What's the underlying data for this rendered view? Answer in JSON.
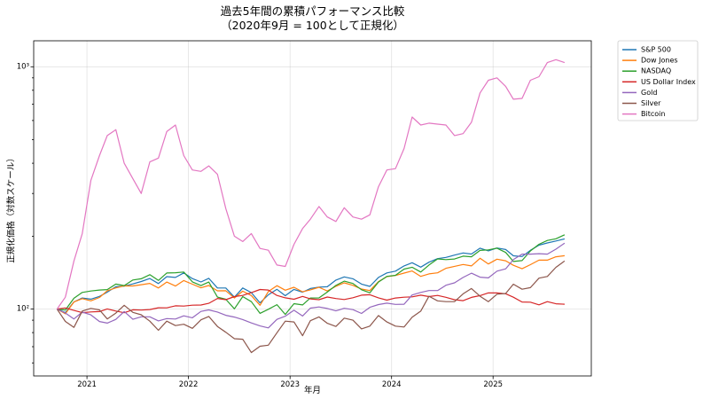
{
  "chart_data": {
    "type": "line",
    "title": "過去5年間の累積パフォーマンス比較",
    "subtitle": "（2020年9月 = 100として正規化）",
    "xlabel": "年月",
    "ylabel": "正規化価格（対数スケール）",
    "yscale": "log",
    "xlim": [
      "2020-06-23",
      "2025-12-20"
    ],
    "ylim": [
      53,
      1280
    ],
    "grid": true,
    "legend": "outside-upper-right",
    "x_ticks": [
      {
        "value": "2021-01-01",
        "label": "2021"
      },
      {
        "value": "2022-01-01",
        "label": "2022"
      },
      {
        "value": "2023-01-01",
        "label": "2023"
      },
      {
        "value": "2024-01-01",
        "label": "2024"
      },
      {
        "value": "2025-01-01",
        "label": "2025"
      }
    ],
    "y_ticks": [
      {
        "value": 100,
        "label": "10²"
      },
      {
        "value": 1000,
        "label": "10³"
      }
    ],
    "x": [
      "2020-09",
      "2020-10",
      "2020-11",
      "2020-12",
      "2021-01",
      "2021-02",
      "2021-03",
      "2021-04",
      "2021-05",
      "2021-06",
      "2021-07",
      "2021-08",
      "2021-09",
      "2021-10",
      "2021-11",
      "2021-12",
      "2022-01",
      "2022-02",
      "2022-03",
      "2022-04",
      "2022-05",
      "2022-06",
      "2022-07",
      "2022-08",
      "2022-09",
      "2022-10",
      "2022-11",
      "2022-12",
      "2023-01",
      "2023-02",
      "2023-03",
      "2023-04",
      "2023-05",
      "2023-06",
      "2023-07",
      "2023-08",
      "2023-09",
      "2023-10",
      "2023-11",
      "2023-12",
      "2024-01",
      "2024-02",
      "2024-03",
      "2024-04",
      "2024-05",
      "2024-06",
      "2024-07",
      "2024-08",
      "2024-09",
      "2024-10",
      "2024-11",
      "2024-12",
      "2025-01",
      "2025-02",
      "2025-03",
      "2025-04",
      "2025-05",
      "2025-06",
      "2025-07",
      "2025-08",
      "2025-09"
    ],
    "series": [
      {
        "name": "S&P 500",
        "color": "#1f77b4",
        "values": [
          100,
          96.7,
          107.1,
          111.1,
          109.9,
          112.8,
          117.5,
          123.7,
          124.4,
          127.1,
          130.0,
          133.8,
          127.5,
          136.2,
          135.1,
          141.0,
          133.6,
          129.4,
          134.0,
          122.2,
          122.2,
          112.0,
          122.2,
          117.0,
          106.1,
          114.6,
          120.7,
          113.6,
          120.6,
          117.5,
          121.6,
          123.3,
          123.7,
          131.7,
          135.8,
          133.4,
          126.9,
          124.1,
          135.1,
          141.1,
          143.4,
          150.8,
          155.4,
          149.0,
          156.2,
          161.5,
          163.4,
          167.1,
          170.5,
          168.8,
          178.5,
          174.0,
          178.7,
          176.2,
          166.0,
          164.8,
          174.9,
          183.6,
          187.5,
          191.1,
          195.0
        ]
      },
      {
        "name": "Dow Jones",
        "color": "#ff7f0e",
        "values": [
          100,
          95.7,
          107.0,
          110.5,
          108.2,
          111.7,
          119.1,
          122.3,
          124.7,
          124.6,
          126.1,
          127.7,
          122.2,
          129.3,
          124.5,
          131.2,
          126.8,
          122.4,
          125.2,
          119.0,
          119.1,
          111.1,
          118.6,
          113.8,
          103.7,
          118.2,
          124.9,
          119.7,
          123.1,
          117.9,
          120.1,
          123.1,
          118.8,
          124.2,
          128.4,
          125.4,
          121.0,
          119.3,
          129.8,
          136.1,
          137.7,
          140.8,
          143.7,
          136.5,
          139.7,
          141.2,
          147.4,
          150.1,
          152.8,
          150.8,
          162.1,
          153.6,
          160.8,
          158.3,
          151.6,
          146.8,
          152.6,
          159.2,
          159.3,
          164.4,
          166.1
        ]
      },
      {
        "name": "NASDAQ",
        "color": "#2ca02c",
        "values": [
          100,
          99.2,
          110.9,
          117.2,
          118.8,
          119.9,
          120.4,
          126.9,
          125.0,
          131.9,
          133.4,
          138.7,
          131.3,
          140.9,
          141.3,
          142.2,
          129.5,
          125.0,
          129.3,
          112.1,
          109.8,
          100.3,
          112.6,
          107.4,
          96.1,
          99.9,
          104.3,
          95.1,
          105.3,
          104.1,
          111.1,
          111.2,
          117.6,
          125.3,
          130.4,
          127.6,
          120.2,
          116.8,
          129.3,
          136.5,
          137.9,
          146.3,
          148.9,
          142.3,
          152.1,
          161.2,
          160.0,
          161.0,
          165.4,
          164.5,
          174.7,
          175.6,
          178.4,
          171.3,
          157.3,
          158.6,
          173.8,
          185.2,
          192.0,
          195.1,
          202.7
        ]
      },
      {
        "name": "US Dollar Index",
        "color": "#d62728",
        "values": [
          100,
          101.1,
          98.8,
          96.7,
          97.4,
          97.7,
          100.2,
          98.2,
          96.6,
          99.4,
          99.1,
          99.6,
          101.3,
          101.2,
          103.2,
          102.9,
          103.8,
          104.0,
          105.7,
          110.7,
          109.4,
          112.6,
          113.9,
          116.9,
          120.5,
          119.9,
          113.9,
          111.3,
          109.8,
          112.8,
          110.2,
          109.4,
          112.2,
          110.6,
          109.6,
          111.4,
          114.2,
          114.7,
          111.3,
          108.9,
          111.1,
          112.0,
          112.4,
          114.2,
          112.6,
          113.9,
          111.9,
          109.4,
          108.4,
          111.8,
          113.7,
          116.7,
          116.6,
          115.7,
          112.0,
          107.0,
          106.8,
          104.2,
          107.4,
          105.2,
          104.8
        ]
      },
      {
        "name": "Gold",
        "color": "#9467bd",
        "values": [
          100,
          96.4,
          91.1,
          97.2,
          94.7,
          88.9,
          87.6,
          90.7,
          97.8,
          90.8,
          93.0,
          93.0,
          89.4,
          91.4,
          91.0,
          93.8,
          92.1,
          97.9,
          99.3,
          97.3,
          94.3,
          92.7,
          90.6,
          87.7,
          85.2,
          83.7,
          90.7,
          93.5,
          98.9,
          93.7,
          101.0,
          102.1,
          100.6,
          98.4,
          100.8,
          99.5,
          96.0,
          101.7,
          104.4,
          105.8,
          104.6,
          104.8,
          114.4,
          117.2,
          119.3,
          119.3,
          125.5,
          128.4,
          135.1,
          140.7,
          135.5,
          134.6,
          143.5,
          146.6,
          160.1,
          168.7,
          168.7,
          169.4,
          168.7,
          176.8,
          187.2
        ]
      },
      {
        "name": "Silver",
        "color": "#8c564b",
        "values": [
          100,
          89.0,
          84.1,
          98.2,
          100.7,
          99.3,
          91.1,
          96.3,
          103.7,
          97.0,
          94.8,
          89.2,
          81.8,
          89.2,
          85.5,
          86.6,
          83.3,
          90.3,
          93.3,
          84.8,
          80.3,
          75.5,
          75.1,
          66.2,
          70.3,
          71.0,
          79.9,
          89.2,
          88.5,
          77.7,
          89.6,
          92.9,
          87.4,
          84.8,
          91.8,
          90.0,
          82.9,
          85.1,
          94.1,
          88.5,
          85.1,
          84.4,
          92.6,
          98.1,
          113.0,
          108.2,
          107.4,
          107.4,
          115.6,
          121.6,
          113.0,
          107.4,
          115.2,
          116.0,
          126.8,
          120.8,
          122.7,
          134.2,
          136.4,
          148.7,
          158.0
        ]
      },
      {
        "name": "Bitcoin",
        "color": "#e377c2",
        "values": [
          100,
          112,
          158,
          205,
          340,
          430,
          520,
          550,
          400,
          345,
          300,
          405,
          420,
          540,
          575,
          430,
          375,
          370,
          390,
          360,
          260,
          200,
          190,
          205,
          178,
          175,
          152,
          150,
          185,
          215,
          235,
          265,
          240,
          230,
          262,
          240,
          235,
          245,
          320,
          375,
          380,
          460,
          620,
          575,
          585,
          580,
          575,
          520,
          530,
          590,
          780,
          880,
          900,
          830,
          735,
          740,
          880,
          910,
          1040,
          1070,
          1040
        ]
      }
    ]
  }
}
